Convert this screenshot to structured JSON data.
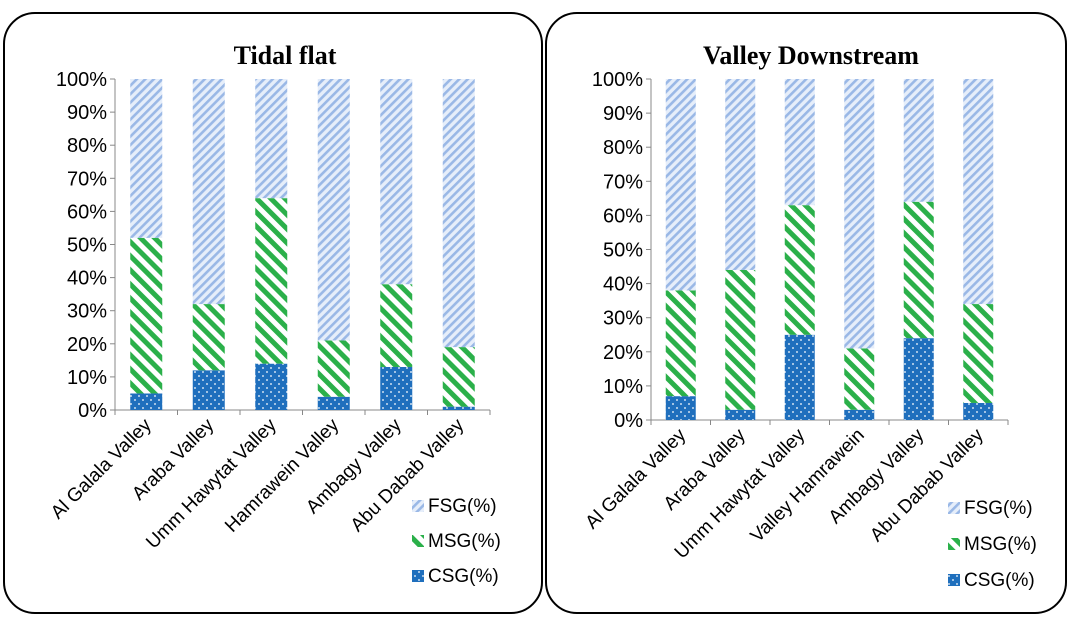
{
  "colors": {
    "fsg": "#9ab8e6",
    "msg": "#2bb04a",
    "csg": "#1f6fbd"
  },
  "chart_data": [
    {
      "type": "bar",
      "stacked": "percent",
      "title": "Tidal flat",
      "categories": [
        "Al Galala Valley",
        "Araba Valley",
        "Umm Hawytat Valley",
        "Hamrawein Valley",
        "Ambagy Valley",
        "Abu Dabab Valley"
      ],
      "series": [
        {
          "name": "CSG(%)",
          "values": [
            5,
            12,
            14,
            4,
            13,
            1
          ]
        },
        {
          "name": "MSG(%)",
          "values": [
            47,
            20,
            50,
            17,
            25,
            18
          ]
        },
        {
          "name": "FSG(%)",
          "values": [
            48,
            68,
            36,
            79,
            62,
            81
          ]
        }
      ],
      "yticks": [
        "0%",
        "10%",
        "20%",
        "30%",
        "40%",
        "50%",
        "60%",
        "70%",
        "80%",
        "90%",
        "100%"
      ],
      "ylim": [
        0,
        100
      ],
      "legend": "bottom-right"
    },
    {
      "type": "bar",
      "stacked": "percent",
      "title": "Valley Downstream",
      "categories": [
        "Al Galala Valley",
        "Araba Valley",
        "Umm Hawytat Valley",
        "Valley Hamrawein",
        "Ambagy Valley",
        "Abu Dabab Valley"
      ],
      "series": [
        {
          "name": "CSG(%)",
          "values": [
            7,
            3,
            25,
            3,
            24,
            5
          ]
        },
        {
          "name": "MSG(%)",
          "values": [
            31,
            41,
            38,
            18,
            40,
            29
          ]
        },
        {
          "name": "FSG(%)",
          "values": [
            62,
            56,
            37,
            79,
            36,
            66
          ]
        }
      ],
      "yticks": [
        "0%",
        "10%",
        "20%",
        "30%",
        "40%",
        "50%",
        "60%",
        "70%",
        "80%",
        "90%",
        "100%"
      ],
      "ylim": [
        0,
        100
      ],
      "legend": "bottom-right"
    }
  ]
}
